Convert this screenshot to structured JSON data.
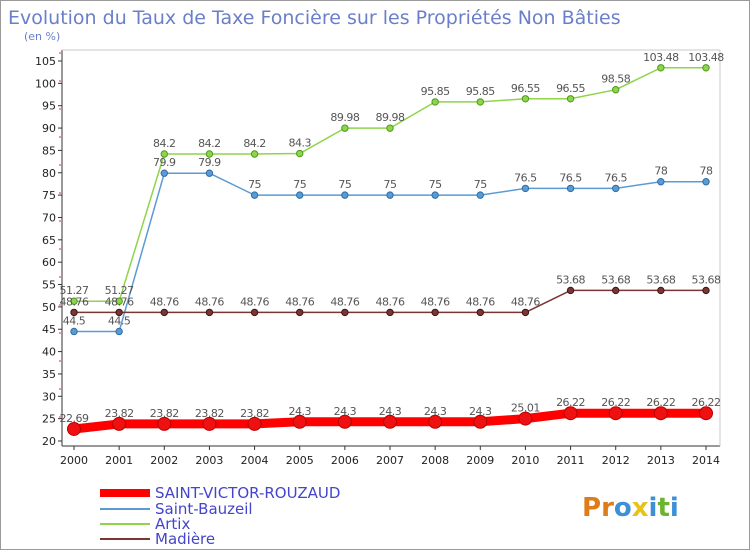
{
  "chart_data": {
    "type": "line",
    "title": "Evolution du Taux de Taxe Foncière sur les Propriétés Non Bâties",
    "ylabel": "(en %)",
    "xlabel": "",
    "ylim": [
      20,
      105
    ],
    "y_ticks": [
      20,
      25,
      30,
      35,
      40,
      45,
      50,
      55,
      60,
      65,
      70,
      75,
      80,
      85,
      90,
      95,
      100,
      105
    ],
    "categories": [
      "2000",
      "2001",
      "2002",
      "2003",
      "2004",
      "2005",
      "2006",
      "2007",
      "2008",
      "2009",
      "2010",
      "2011",
      "2012",
      "2013",
      "2014"
    ],
    "grid": false,
    "legend_position": "bottom-left",
    "series": [
      {
        "name": "SAINT-VICTOR-ROUZAUD",
        "color": "#ff0000",
        "values": [
          22.69,
          23.82,
          23.82,
          23.82,
          23.82,
          24.3,
          24.3,
          24.3,
          24.3,
          24.3,
          25.01,
          26.22,
          26.22,
          26.22,
          26.22
        ],
        "labels": [
          "22.69",
          "23.82",
          "23.82",
          "23.82",
          "23.82",
          "24.3",
          "24.3",
          "24.3",
          "24.3",
          "24.3",
          "25.01",
          "26.22",
          "26.22",
          "26.22",
          "26.22"
        ]
      },
      {
        "name": "Saint-Bauzeil",
        "color": "#5b9bd5",
        "values": [
          44.5,
          44.5,
          79.9,
          79.9,
          75,
          75,
          75,
          75,
          75,
          75,
          76.5,
          76.5,
          76.5,
          78,
          78
        ],
        "labels": [
          "44.5",
          "44.5",
          "79.9",
          "79.9",
          "75",
          "75",
          "75",
          "75",
          "75",
          "75",
          "76.5",
          "76.5",
          "76.5",
          "78",
          "78"
        ]
      },
      {
        "name": "Artix",
        "color": "#8fd44a",
        "values": [
          51.27,
          51.27,
          84.2,
          84.2,
          84.2,
          84.3,
          89.98,
          89.98,
          95.85,
          95.85,
          96.55,
          96.55,
          98.58,
          103.48,
          103.48
        ],
        "labels": [
          "51.27",
          "51.27",
          "84.2",
          "84.2",
          "84.2",
          "84.3",
          "89.98",
          "89.98",
          "95.85",
          "95.85",
          "96.55",
          "96.55",
          "98.58",
          "103.48",
          "103.48"
        ]
      },
      {
        "name": "Madière",
        "color": "#7a3535",
        "values": [
          48.76,
          48.76,
          48.76,
          48.76,
          48.76,
          48.76,
          48.76,
          48.76,
          48.76,
          48.76,
          48.76,
          53.68,
          53.68,
          53.68,
          53.68
        ],
        "labels": [
          "48.76",
          "48.76",
          "48.76",
          "48.76",
          "48.76",
          "48.76",
          "48.76",
          "48.76",
          "48.76",
          "48.76",
          "48.76",
          "53.68",
          "53.68",
          "53.68",
          "53.68"
        ]
      }
    ]
  },
  "logo": {
    "text": "Proxiti",
    "letter_colors": [
      "#e07b1a",
      "#e07b1a",
      "#3d8fd6",
      "#e7c31a",
      "#3d8fd6",
      "#6ab42e",
      "#3d8fd6"
    ]
  }
}
